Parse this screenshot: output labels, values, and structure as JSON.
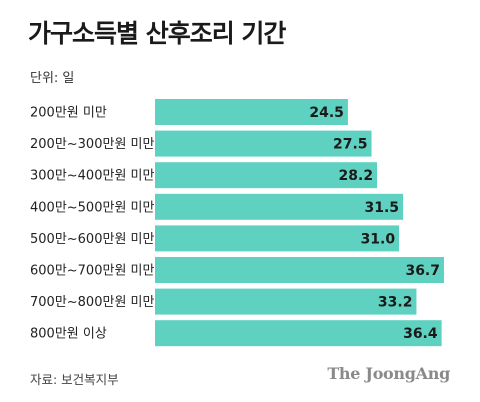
{
  "header": {
    "title": "가구소득별 산후조리 기간",
    "unit": "단위: 일"
  },
  "footer": {
    "source": "자료: 보건복지부",
    "brand": "The JoongAng"
  },
  "colors": {
    "bar": "#5fd1c0",
    "text": "#222222"
  },
  "chart_data": {
    "type": "bar",
    "orientation": "horizontal",
    "title": "가구소득별 산후조리 기간",
    "unit": "단위: 일",
    "categories": [
      "200만원 미만",
      "200만~300만원 미만",
      "300만~400만원 미만",
      "400만~500만원 미만",
      "500만~600만원 미만",
      "600만~700만원 미만",
      "700만~800만원 미만",
      "800만원 이상"
    ],
    "values": [
      24.5,
      27.5,
      28.2,
      31.5,
      31.0,
      36.7,
      33.2,
      36.4
    ],
    "labels": [
      "24.5",
      "27.5",
      "28.2",
      "31.5",
      "31.0",
      "36.7",
      "33.2",
      "36.4"
    ],
    "xlim": [
      0,
      36.7
    ],
    "grid": false,
    "legend": "none"
  }
}
